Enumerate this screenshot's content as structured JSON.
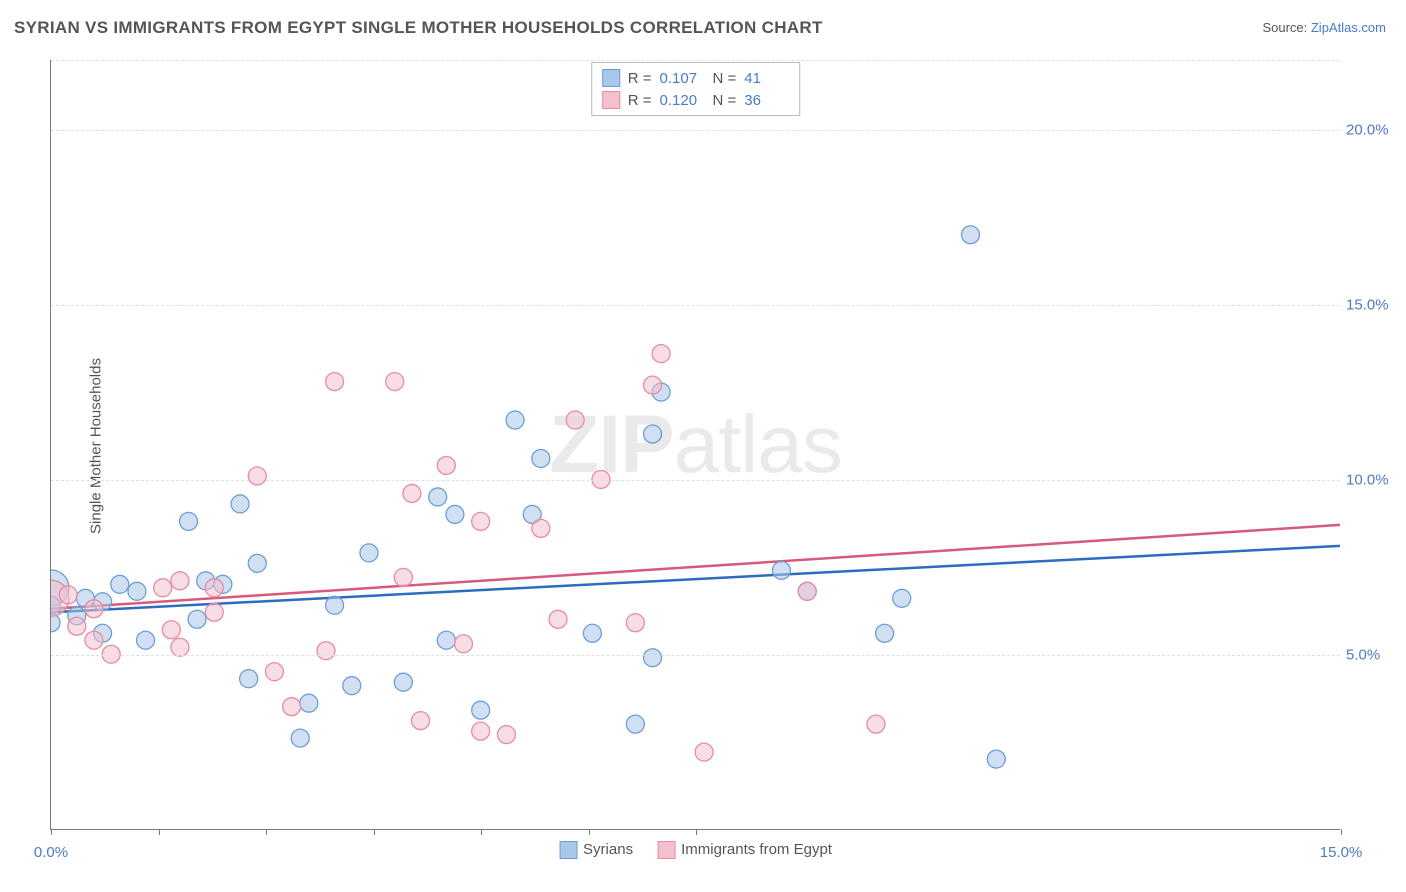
{
  "title": "SYRIAN VS IMMIGRANTS FROM EGYPT SINGLE MOTHER HOUSEHOLDS CORRELATION CHART",
  "source_prefix": "Source: ",
  "source_name": "ZipAtlas.com",
  "ylabel": "Single Mother Households",
  "watermark_bold": "ZIP",
  "watermark_rest": "atlas",
  "chart": {
    "type": "scatter",
    "background_color": "#ffffff",
    "grid_color": "#e0e0e0",
    "axis_color": "#777777",
    "label_color": "#555555",
    "value_color": "#4a7bc8",
    "xlim": [
      0,
      15
    ],
    "ylim": [
      0,
      22
    ],
    "title_fontsize": 17,
    "label_fontsize": 15,
    "x_ticks": [
      {
        "pos": 0,
        "label": "0.0%"
      },
      {
        "pos": 1.25,
        "label": ""
      },
      {
        "pos": 2.5,
        "label": ""
      },
      {
        "pos": 3.75,
        "label": ""
      },
      {
        "pos": 5.0,
        "label": ""
      },
      {
        "pos": 6.25,
        "label": ""
      },
      {
        "pos": 7.5,
        "label": ""
      },
      {
        "pos": 15,
        "label": "15.0%"
      }
    ],
    "y_ticks": [
      {
        "pos": 5,
        "label": "5.0%"
      },
      {
        "pos": 10,
        "label": "10.0%"
      },
      {
        "pos": 15,
        "label": "15.0%"
      },
      {
        "pos": 20,
        "label": "20.0%"
      }
    ],
    "series": [
      {
        "name": "Syrians",
        "color_fill": "#a9c7e8",
        "color_stroke": "#6d9fd4",
        "trend_color": "#2d6cc0",
        "fill_opacity": 0.55,
        "marker_radius": 9,
        "marker_radius_big": 18,
        "R": "0.107",
        "N": "41",
        "trend": {
          "x1": 0,
          "y1": 6.2,
          "x2": 15,
          "y2": 8.1
        },
        "points": [
          {
            "x": 0.0,
            "y": 6.9,
            "big": true
          },
          {
            "x": 0.0,
            "y": 6.4
          },
          {
            "x": 0.0,
            "y": 5.9
          },
          {
            "x": 0.3,
            "y": 6.1
          },
          {
            "x": 0.4,
            "y": 6.6
          },
          {
            "x": 0.6,
            "y": 6.5
          },
          {
            "x": 0.6,
            "y": 5.6
          },
          {
            "x": 0.8,
            "y": 7.0
          },
          {
            "x": 1.0,
            "y": 6.8
          },
          {
            "x": 1.1,
            "y": 5.4
          },
          {
            "x": 1.6,
            "y": 8.8
          },
          {
            "x": 1.7,
            "y": 6.0
          },
          {
            "x": 1.8,
            "y": 7.1
          },
          {
            "x": 2.0,
            "y": 7.0
          },
          {
            "x": 2.2,
            "y": 9.3
          },
          {
            "x": 2.3,
            "y": 4.3
          },
          {
            "x": 2.4,
            "y": 7.6
          },
          {
            "x": 2.9,
            "y": 2.6
          },
          {
            "x": 3.0,
            "y": 3.6
          },
          {
            "x": 3.3,
            "y": 6.4
          },
          {
            "x": 3.5,
            "y": 4.1
          },
          {
            "x": 3.7,
            "y": 7.9
          },
          {
            "x": 4.1,
            "y": 4.2
          },
          {
            "x": 4.5,
            "y": 9.5
          },
          {
            "x": 4.6,
            "y": 5.4
          },
          {
            "x": 4.7,
            "y": 9.0
          },
          {
            "x": 5.0,
            "y": 3.4
          },
          {
            "x": 5.4,
            "y": 11.7
          },
          {
            "x": 5.6,
            "y": 9.0
          },
          {
            "x": 5.7,
            "y": 10.6
          },
          {
            "x": 6.3,
            "y": 5.6
          },
          {
            "x": 6.8,
            "y": 3.0
          },
          {
            "x": 7.0,
            "y": 4.9
          },
          {
            "x": 7.0,
            "y": 11.3
          },
          {
            "x": 7.1,
            "y": 12.5
          },
          {
            "x": 8.5,
            "y": 7.4
          },
          {
            "x": 8.8,
            "y": 6.8
          },
          {
            "x": 9.7,
            "y": 5.6
          },
          {
            "x": 9.9,
            "y": 6.6
          },
          {
            "x": 10.7,
            "y": 17.0
          },
          {
            "x": 11.0,
            "y": 2.0
          }
        ]
      },
      {
        "name": "Immigrants from Egypt",
        "color_fill": "#f3c1cd",
        "color_stroke": "#e68ba3",
        "trend_color": "#d85a7a",
        "fill_opacity": 0.55,
        "marker_radius": 9,
        "marker_radius_big": 18,
        "R": "0.120",
        "N": "36",
        "trend": {
          "x1": 0,
          "y1": 6.3,
          "x2": 15,
          "y2": 8.7
        },
        "points": [
          {
            "x": 0.0,
            "y": 6.6,
            "big": true
          },
          {
            "x": 0.2,
            "y": 6.7
          },
          {
            "x": 0.3,
            "y": 5.8
          },
          {
            "x": 0.5,
            "y": 6.3
          },
          {
            "x": 0.5,
            "y": 5.4
          },
          {
            "x": 0.7,
            "y": 5.0
          },
          {
            "x": 1.3,
            "y": 6.9
          },
          {
            "x": 1.4,
            "y": 5.7
          },
          {
            "x": 1.5,
            "y": 7.1
          },
          {
            "x": 1.5,
            "y": 5.2
          },
          {
            "x": 1.9,
            "y": 6.9
          },
          {
            "x": 1.9,
            "y": 6.2
          },
          {
            "x": 2.4,
            "y": 10.1
          },
          {
            "x": 2.6,
            "y": 4.5
          },
          {
            "x": 2.8,
            "y": 3.5
          },
          {
            "x": 3.2,
            "y": 5.1
          },
          {
            "x": 3.3,
            "y": 12.8
          },
          {
            "x": 4.0,
            "y": 12.8
          },
          {
            "x": 4.1,
            "y": 7.2
          },
          {
            "x": 4.2,
            "y": 9.6
          },
          {
            "x": 4.3,
            "y": 3.1
          },
          {
            "x": 4.6,
            "y": 10.4
          },
          {
            "x": 4.8,
            "y": 5.3
          },
          {
            "x": 5.0,
            "y": 2.8
          },
          {
            "x": 5.0,
            "y": 8.8
          },
          {
            "x": 5.3,
            "y": 2.7
          },
          {
            "x": 5.7,
            "y": 8.6
          },
          {
            "x": 5.9,
            "y": 6.0
          },
          {
            "x": 6.1,
            "y": 11.7
          },
          {
            "x": 6.4,
            "y": 10.0
          },
          {
            "x": 6.8,
            "y": 5.9
          },
          {
            "x": 7.0,
            "y": 12.7
          },
          {
            "x": 7.1,
            "y": 13.6
          },
          {
            "x": 7.6,
            "y": 2.2
          },
          {
            "x": 8.8,
            "y": 6.8
          },
          {
            "x": 9.6,
            "y": 3.0
          }
        ]
      }
    ]
  },
  "legend_top": {
    "r_label": "R =",
    "n_label": "N ="
  },
  "legend_bottom": {}
}
